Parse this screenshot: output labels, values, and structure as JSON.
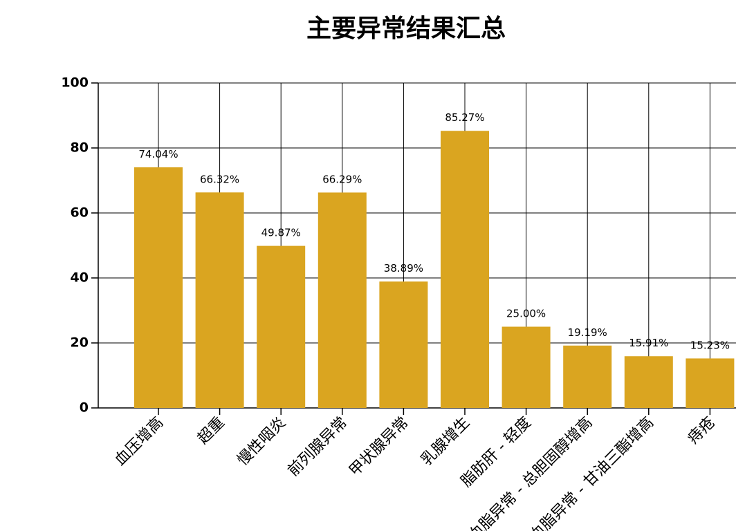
{
  "chart_data": {
    "type": "bar",
    "title": "主要异常结果汇总",
    "categories": [
      "血压增高",
      "超重",
      "慢性咽炎",
      "前列腺异常",
      "甲状腺异常",
      "乳腺增生",
      "脂肪肝 - 轻度",
      "血脂异常 - 总胆固醇增高",
      "血脂异常 - 甘油三酯增高",
      "痔疮"
    ],
    "values": [
      74.04,
      66.32,
      49.87,
      66.29,
      38.89,
      85.27,
      25.0,
      19.19,
      15.91,
      15.23
    ],
    "value_labels": [
      "74.04%",
      "66.32%",
      "49.87%",
      "66.29%",
      "38.89%",
      "85.27%",
      "25.00%",
      "19.19%",
      "15.91%",
      "15.23%"
    ],
    "color": "#daa520",
    "ylim": [
      0,
      100
    ],
    "yticks": [
      0,
      20,
      40,
      60,
      80,
      100
    ],
    "grid": true
  }
}
